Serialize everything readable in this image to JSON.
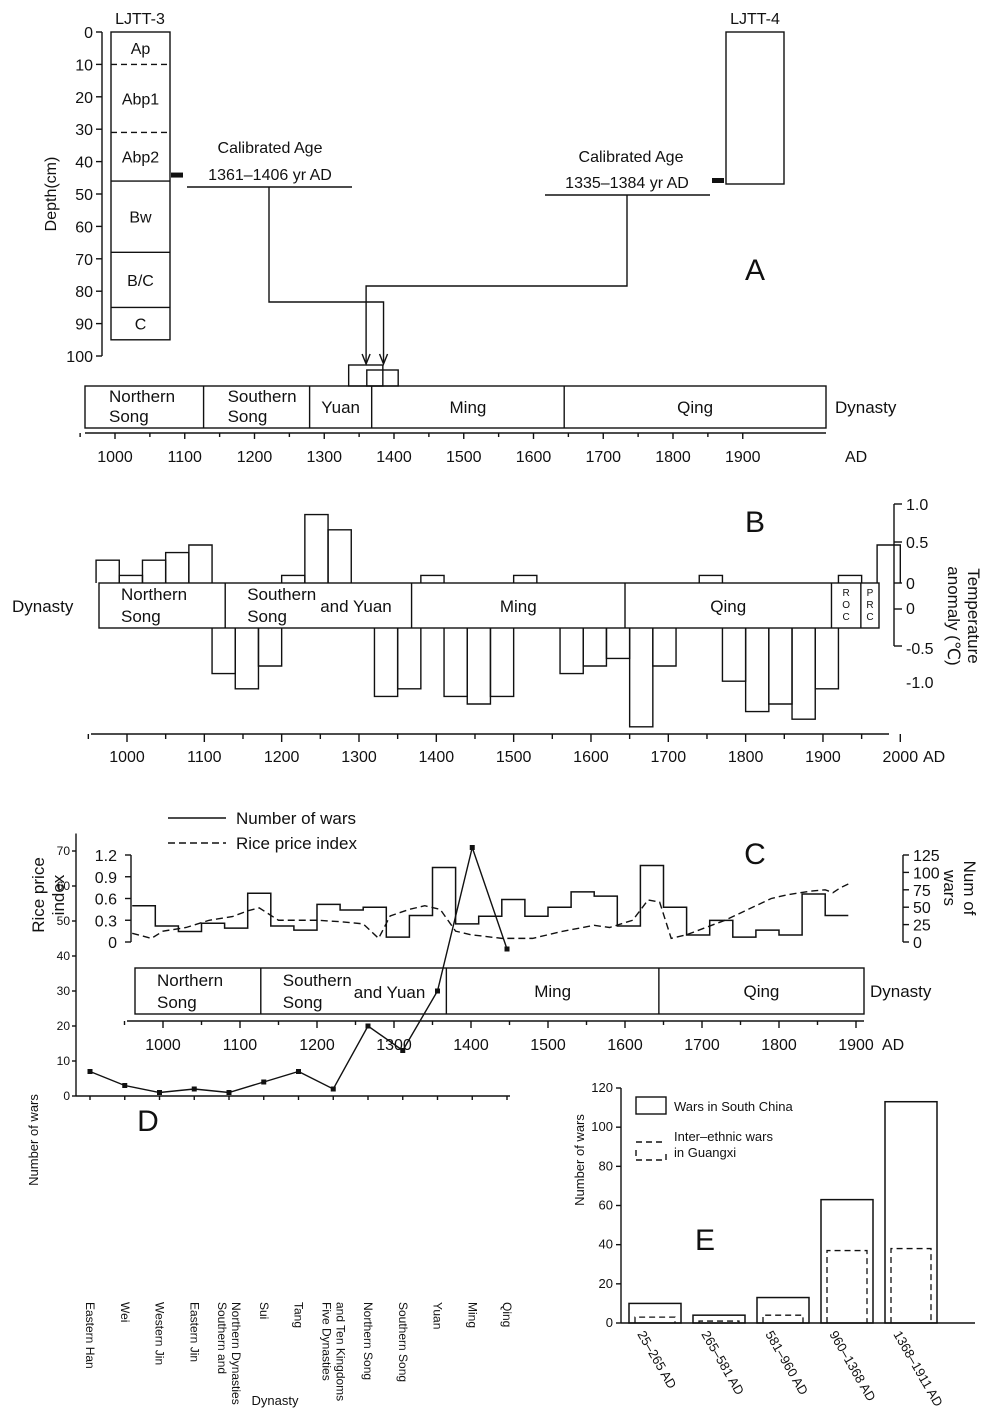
{
  "chart_data": [
    {
      "panel": "A",
      "type": "table",
      "cores": [
        {
          "name": "LJTT-3",
          "depth_axis": {
            "label": "Depth(cm)",
            "ticks": [
              0,
              10,
              20,
              30,
              40,
              50,
              60,
              70,
              80,
              90,
              100
            ],
            "range": [
              0,
              100
            ]
          },
          "horizons": [
            {
              "label": "Ap",
              "top": 0,
              "bottom": 10,
              "lower_boundary": "dashed"
            },
            {
              "label": "Abp1",
              "top": 10,
              "bottom": 31,
              "lower_boundary": "dashed"
            },
            {
              "label": "Abp2",
              "top": 31,
              "bottom": 46,
              "lower_boundary": "solid"
            },
            {
              "label": "Bw",
              "top": 46,
              "bottom": 68,
              "lower_boundary": "solid"
            },
            {
              "label": "B/C",
              "top": 68,
              "bottom": 85,
              "lower_boundary": "solid"
            },
            {
              "label": "C",
              "top": 85,
              "bottom": 95,
              "lower_boundary": "solid"
            }
          ],
          "sample_depth": 44,
          "age_label": "Calibrated Age",
          "age_range": "1361–1406 yr AD",
          "age_years": [
            1361,
            1406
          ]
        },
        {
          "name": "LJTT-4",
          "core_top": 0,
          "core_bottom": 47,
          "sample_depth": 46,
          "age_label": "Calibrated Age",
          "age_range": "1335–1384 yr AD",
          "age_years": [
            1335,
            1384
          ]
        }
      ],
      "dynasties": [
        {
          "name": "Northern Song",
          "start": 960,
          "end": 1127
        },
        {
          "name": "Southern Song",
          "start": 1127,
          "end": 1279
        },
        {
          "name": "Yuan",
          "start": 1279,
          "end": 1368
        },
        {
          "name": "Ming",
          "start": 1368,
          "end": 1644
        },
        {
          "name": "Qing",
          "start": 1644,
          "end": 1911
        }
      ],
      "dynasty_label": "Dynasty",
      "x_ticks": [
        1000,
        1100,
        1200,
        1300,
        1400,
        1500,
        1600,
        1700,
        1800,
        1900
      ],
      "x_unit": "AD",
      "panel_letter": "A"
    },
    {
      "panel": "B",
      "type": "bar",
      "ylabel": "Temperature anomaly (℃)",
      "ylim": [
        -1.2,
        1.0
      ],
      "y_ticks_upper": [
        "1.0",
        "0.5",
        "0"
      ],
      "y_ticks_lower": [
        "0",
        "-0.5",
        "-1.0"
      ],
      "x_ticks": [
        1000,
        1100,
        1200,
        1300,
        1400,
        1500,
        1600,
        1700,
        1800,
        1900,
        2000
      ],
      "x_unit": "AD",
      "bins": [
        {
          "start": 960,
          "end": 990,
          "value": 0.3
        },
        {
          "start": 990,
          "end": 1020,
          "value": 0.1
        },
        {
          "start": 1020,
          "end": 1050,
          "value": 0.3
        },
        {
          "start": 1050,
          "end": 1080,
          "value": 0.4
        },
        {
          "start": 1080,
          "end": 1110,
          "value": 0.5
        },
        {
          "start": 1110,
          "end": 1140,
          "value": -0.6
        },
        {
          "start": 1140,
          "end": 1170,
          "value": -0.8
        },
        {
          "start": 1170,
          "end": 1200,
          "value": -0.5
        },
        {
          "start": 1200,
          "end": 1230,
          "value": 0.1
        },
        {
          "start": 1230,
          "end": 1260,
          "value": 0.9
        },
        {
          "start": 1260,
          "end": 1290,
          "value": 0.7
        },
        {
          "start": 1290,
          "end": 1320,
          "value": 0.0
        },
        {
          "start": 1320,
          "end": 1350,
          "value": -0.9
        },
        {
          "start": 1350,
          "end": 1380,
          "value": -0.8
        },
        {
          "start": 1380,
          "end": 1410,
          "value": 0.1
        },
        {
          "start": 1410,
          "end": 1440,
          "value": -0.9
        },
        {
          "start": 1440,
          "end": 1470,
          "value": -1.0
        },
        {
          "start": 1470,
          "end": 1500,
          "value": -0.9
        },
        {
          "start": 1500,
          "end": 1530,
          "value": 0.1
        },
        {
          "start": 1530,
          "end": 1560,
          "value": 0.0
        },
        {
          "start": 1560,
          "end": 1590,
          "value": -0.6
        },
        {
          "start": 1590,
          "end": 1620,
          "value": -0.5
        },
        {
          "start": 1620,
          "end": 1650,
          "value": -0.4
        },
        {
          "start": 1650,
          "end": 1680,
          "value": -1.3
        },
        {
          "start": 1680,
          "end": 1710,
          "value": -0.5
        },
        {
          "start": 1710,
          "end": 1740,
          "value": 0.0
        },
        {
          "start": 1740,
          "end": 1770,
          "value": 0.1
        },
        {
          "start": 1770,
          "end": 1800,
          "value": -0.7
        },
        {
          "start": 1800,
          "end": 1830,
          "value": -1.1
        },
        {
          "start": 1830,
          "end": 1860,
          "value": -1.0
        },
        {
          "start": 1860,
          "end": 1890,
          "value": -1.2
        },
        {
          "start": 1890,
          "end": 1920,
          "value": -0.8
        },
        {
          "start": 1920,
          "end": 1950,
          "value": 0.1
        },
        {
          "start": 1950,
          "end": 1970,
          "value": 0.0
        },
        {
          "start": 1970,
          "end": 2000,
          "value": 0.5
        }
      ],
      "dynasties": [
        {
          "line1": "Northern",
          "line2": "Song",
          "start": 960,
          "end": 1127
        },
        {
          "line1": "Southern",
          "line2": "Song",
          "extra": "and Yuan",
          "start": 1127,
          "end": 1368
        },
        {
          "line1": "Ming",
          "start": 1368,
          "end": 1644
        },
        {
          "line1": "Qing",
          "start": 1644,
          "end": 1911
        },
        {
          "vertical": "ROC",
          "start": 1911,
          "end": 1949
        },
        {
          "vertical": "PRC",
          "start": 1949,
          "end": 2000
        }
      ],
      "dynasty_label": "Dynasty",
      "panel_letter": "B"
    },
    {
      "panel": "C",
      "type": "line",
      "legend": [
        "Number of wars",
        "Rice price index"
      ],
      "left_axis": {
        "label": "Rice price index",
        "ticks": [
          "0",
          "0.3",
          "0.6",
          "0.9",
          "1.2"
        ],
        "range": [
          0,
          1.2
        ]
      },
      "right_axis": {
        "label": "Num of wars",
        "ticks": [
          "0",
          "25",
          "50",
          "75",
          "100",
          "125"
        ],
        "range": [
          0,
          125
        ]
      },
      "x_ticks": [
        1000,
        1100,
        1200,
        1300,
        1400,
        1500,
        1600,
        1700,
        1800,
        1900
      ],
      "x_unit": "AD",
      "series": [
        {
          "name": "Number of wars",
          "style": "step",
          "steps": [
            [
              960,
              990,
              52
            ],
            [
              990,
              1020,
              23
            ],
            [
              1020,
              1050,
              15
            ],
            [
              1050,
              1080,
              27
            ],
            [
              1080,
              1110,
              20
            ],
            [
              1110,
              1140,
              70
            ],
            [
              1140,
              1170,
              23
            ],
            [
              1170,
              1200,
              17
            ],
            [
              1200,
              1230,
              54
            ],
            [
              1230,
              1260,
              46
            ],
            [
              1260,
              1290,
              50
            ],
            [
              1290,
              1320,
              7
            ],
            [
              1320,
              1350,
              38
            ],
            [
              1350,
              1380,
              107
            ],
            [
              1380,
              1410,
              26
            ],
            [
              1410,
              1440,
              37
            ],
            [
              1440,
              1470,
              61
            ],
            [
              1470,
              1500,
              37
            ],
            [
              1500,
              1530,
              50
            ],
            [
              1530,
              1560,
              72
            ],
            [
              1560,
              1590,
              66
            ],
            [
              1590,
              1620,
              23
            ],
            [
              1620,
              1650,
              110
            ],
            [
              1650,
              1680,
              50
            ],
            [
              1680,
              1710,
              10
            ],
            [
              1710,
              1740,
              31
            ],
            [
              1740,
              1770,
              7
            ],
            [
              1770,
              1800,
              17
            ],
            [
              1800,
              1830,
              10
            ],
            [
              1830,
              1860,
              69
            ],
            [
              1860,
              1890,
              38
            ]
          ]
        },
        {
          "name": "Rice price index",
          "style": "dashed",
          "x": [
            960,
            985,
            1000,
            1030,
            1060,
            1090,
            1110,
            1125,
            1150,
            1200,
            1230,
            1260,
            1280,
            1295,
            1320,
            1340,
            1360,
            1380,
            1400,
            1440,
            1480,
            1520,
            1560,
            1580,
            1610,
            1630,
            1645,
            1660,
            1680,
            1700,
            1730,
            1760,
            1790,
            1810,
            1840,
            1860,
            1870,
            1880,
            1890
          ],
          "y": [
            0.12,
            0.05,
            0.15,
            0.2,
            0.3,
            0.35,
            0.43,
            0.47,
            0.3,
            0.3,
            0.28,
            0.25,
            0.05,
            0.36,
            0.45,
            0.5,
            0.45,
            0.15,
            0.1,
            0.05,
            0.05,
            0.15,
            0.23,
            0.2,
            0.3,
            0.58,
            0.55,
            0.05,
            0.1,
            0.18,
            0.3,
            0.45,
            0.6,
            0.65,
            0.7,
            0.72,
            0.68,
            0.75,
            0.8
          ]
        }
      ],
      "dynasties": [
        {
          "line1": "Northern",
          "line2": "Song",
          "start": 960,
          "end": 1127
        },
        {
          "line1": "Southern",
          "line2": "Song",
          "extra": "and Yuan",
          "start": 1127,
          "end": 1368
        },
        {
          "line1": "Ming",
          "start": 1368,
          "end": 1644
        },
        {
          "line1": "Qing",
          "start": 1644,
          "end": 1911
        }
      ],
      "dynasty_label": "Dynasty",
      "panel_letter": "C"
    },
    {
      "panel": "D",
      "type": "line",
      "ylabel": "Number of wars",
      "xlabel": "Dynasty",
      "ylim": [
        0,
        75
      ],
      "y_ticks": [
        0,
        10,
        20,
        30,
        40,
        50,
        60,
        70
      ],
      "categories": [
        "Eastern Han",
        "Wei",
        "Western Jin",
        "Eastern Jin",
        "Southern and Northern Dynasties",
        "Sui",
        "Tang",
        "Five Dynasties and Ten Kingdoms",
        "Northern Song",
        "Southern Song",
        "Yuan",
        "Ming",
        "Qing"
      ],
      "category_lines": [
        [
          "Eastern Han"
        ],
        [
          "Wei"
        ],
        [
          "Western Jin"
        ],
        [
          "Eastern Jin"
        ],
        [
          "Southern and",
          "Northern Dynasties"
        ],
        [
          "Sui"
        ],
        [
          "Tang"
        ],
        [
          "Five Dynasties",
          "and Ten Kingdoms"
        ],
        [
          "Northern Song"
        ],
        [
          "Southern Song"
        ],
        [
          "Yuan"
        ],
        [
          "Ming"
        ],
        [
          "Qing"
        ]
      ],
      "values": [
        7,
        3,
        1,
        2,
        1,
        4,
        7,
        2,
        20,
        13,
        30,
        71,
        42
      ],
      "panel_letter": "D"
    },
    {
      "panel": "E",
      "type": "bar",
      "ylabel": "Number of wars",
      "ylim": [
        0,
        120
      ],
      "y_ticks": [
        0,
        20,
        40,
        60,
        80,
        100,
        120
      ],
      "categories": [
        "25–265 AD",
        "265–581 AD",
        "581–960 AD",
        "960–1368 AD",
        "1368–1911 AD"
      ],
      "series": [
        {
          "name": "Wars in South China",
          "style": "solid",
          "values": [
            10,
            4,
            13,
            63,
            113
          ]
        },
        {
          "name": "Inter–ethnic wars in Guangxi",
          "legend_lines": [
            "Inter–ethnic wars",
            "in Guangxi"
          ],
          "style": "dashed",
          "values": [
            3,
            1,
            4,
            37,
            38
          ]
        }
      ],
      "panel_letter": "E"
    }
  ]
}
